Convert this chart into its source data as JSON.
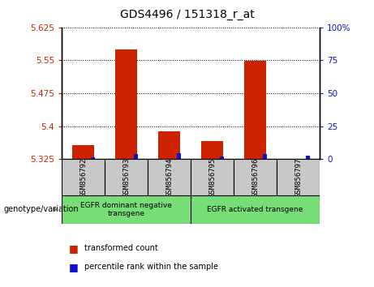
{
  "title": "GDS4496 / 151318_r_at",
  "samples": [
    "GSM856792",
    "GSM856793",
    "GSM856794",
    "GSM856795",
    "GSM856796",
    "GSM856797"
  ],
  "red_values": [
    5.358,
    5.575,
    5.388,
    5.366,
    5.548,
    5.325
  ],
  "blue_values": [
    1.5,
    4.0,
    4.5,
    2.0,
    4.0,
    2.5
  ],
  "y_min": 5.325,
  "y_max": 5.625,
  "y_ticks": [
    5.325,
    5.4,
    5.475,
    5.55,
    5.625
  ],
  "y2_ticks": [
    0,
    25,
    50,
    75,
    100
  ],
  "y2_labels": [
    "0",
    "25",
    "50",
    "75",
    "100%"
  ],
  "groups": [
    {
      "label": "EGFR dominant negative\ntransgene",
      "start": 0,
      "end": 3
    },
    {
      "label": "EGFR activated transgene",
      "start": 3,
      "end": 6
    }
  ],
  "legend_items": [
    {
      "color": "#cc2200",
      "label": "transformed count"
    },
    {
      "color": "#1111cc",
      "label": "percentile rank within the sample"
    }
  ],
  "red_color": "#cc2200",
  "blue_color": "#1111cc",
  "group_green": "#77dd77",
  "sample_box_color": "#c8c8c8"
}
